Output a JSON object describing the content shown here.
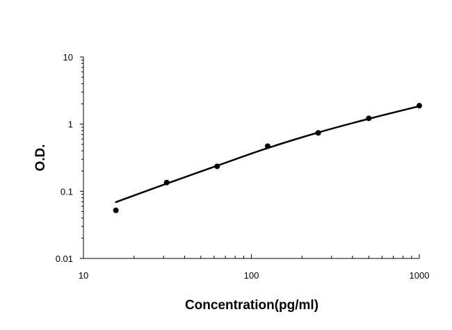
{
  "chart_data": {
    "type": "scatter",
    "title": "",
    "xlabel": "Concentration(pg/ml)",
    "ylabel": "O.D.",
    "x_scale": "log",
    "y_scale": "log",
    "xlim": [
      10,
      1000
    ],
    "ylim": [
      0.01,
      10
    ],
    "x_ticks": [
      "10",
      "100",
      "1000"
    ],
    "y_ticks": [
      "0.01",
      "0.1",
      "1",
      "10"
    ],
    "grid": false,
    "legend": "none",
    "series": [
      {
        "type": "scatter",
        "marker": "circle",
        "color": "#000000",
        "x": [
          15.6,
          31.3,
          62.5,
          125,
          250,
          500,
          1000
        ],
        "y": [
          0.052,
          0.135,
          0.235,
          0.47,
          0.74,
          1.22,
          1.88
        ]
      },
      {
        "type": "line",
        "role": "fitted curve",
        "color": "#000000",
        "x": [
          15.6,
          31.3,
          62.5,
          125,
          250,
          500,
          1000
        ],
        "y": [
          0.069,
          0.13,
          0.24,
          0.44,
          0.75,
          1.2,
          1.85
        ]
      }
    ]
  }
}
